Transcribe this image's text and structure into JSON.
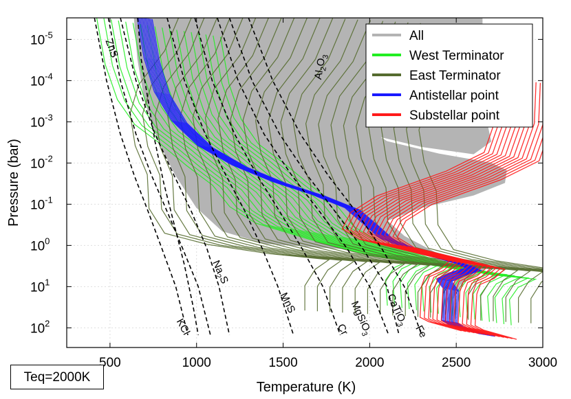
{
  "chart_data": {
    "type": "line",
    "title": "",
    "xlabel": "Temperature (K)",
    "ylabel": "Pressure (bar)",
    "xlim": [
      250,
      3000
    ],
    "ylim_bar": [
      300,
      3e-06
    ],
    "y_scale": "log",
    "y_inverted": true,
    "grid": true,
    "legend_position": "top-right",
    "x_ticks": [
      500,
      1000,
      1500,
      2000,
      2500,
      3000
    ],
    "y_ticks": [
      {
        "value": 1e-05,
        "mantissa": "10",
        "exp": "-5"
      },
      {
        "value": 0.0001,
        "mantissa": "10",
        "exp": "-4"
      },
      {
        "value": 0.001,
        "mantissa": "10",
        "exp": "-3"
      },
      {
        "value": 0.01,
        "mantissa": "10",
        "exp": "-2"
      },
      {
        "value": 0.1,
        "mantissa": "10",
        "exp": "-1"
      },
      {
        "value": 1,
        "mantissa": "10",
        "exp": "0"
      },
      {
        "value": 10,
        "mantissa": "10",
        "exp": "1"
      },
      {
        "value": 100,
        "mantissa": "10",
        "exp": "2"
      }
    ],
    "series": [
      {
        "name": "All",
        "color": "#b4b4b4"
      },
      {
        "name": "West Terminator",
        "color": "#22ee22"
      },
      {
        "name": "East Terminator",
        "color": "#556b2f"
      },
      {
        "name": "Antistellar point",
        "color": "#1a1aff"
      },
      {
        "name": "Substellar point",
        "color": "#ff1a1a"
      }
    ],
    "profiles": {
      "antistellar": [
        [
          700,
          3e-06
        ],
        [
          740,
          3e-05
        ],
        [
          800,
          0.0002
        ],
        [
          900,
          0.001
        ],
        [
          1050,
          0.004
        ],
        [
          1250,
          0.012
        ],
        [
          1480,
          0.03
        ],
        [
          1700,
          0.06
        ],
        [
          1900,
          0.13
        ],
        [
          2000,
          0.3
        ],
        [
          2100,
          0.7
        ],
        [
          2300,
          1.5
        ],
        [
          2550,
          3
        ],
        [
          2600,
          3.8
        ],
        [
          2500,
          5
        ],
        [
          2430,
          7
        ],
        [
          2470,
          12
        ],
        [
          2460,
          70
        ],
        [
          2500,
          90
        ],
        [
          2680,
          150
        ]
      ],
      "substellar": [
        [
          2900,
          0.0001
        ],
        [
          2890,
          0.001
        ],
        [
          2820,
          0.007
        ],
        [
          2600,
          0.02
        ],
        [
          2400,
          0.04
        ],
        [
          2200,
          0.08
        ],
        [
          2050,
          0.2
        ],
        [
          2000,
          0.5
        ],
        [
          2100,
          0.9
        ],
        [
          2400,
          1.8
        ],
        [
          2620,
          3
        ],
        [
          2560,
          5
        ],
        [
          2480,
          7
        ],
        [
          2460,
          12
        ],
        [
          2450,
          70
        ],
        [
          2500,
          90
        ],
        [
          2690,
          150
        ]
      ],
      "west": [
        [
          780,
          5e-06
        ],
        [
          830,
          7e-05
        ],
        [
          900,
          0.0005
        ],
        [
          1000,
          0.002
        ],
        [
          1150,
          0.006
        ],
        [
          1300,
          0.02
        ],
        [
          1450,
          0.06
        ],
        [
          1550,
          0.2
        ],
        [
          1700,
          0.5
        ],
        [
          2000,
          1.2
        ],
        [
          2350,
          3
        ],
        [
          2600,
          3.8
        ],
        [
          2500,
          6
        ],
        [
          2450,
          12
        ],
        [
          2460,
          50
        ]
      ],
      "east": [
        [
          1750,
          3e-06
        ],
        [
          1650,
          3e-05
        ],
        [
          1500,
          0.0002
        ],
        [
          1450,
          0.001
        ],
        [
          1480,
          0.006
        ],
        [
          1550,
          0.03
        ],
        [
          1560,
          0.2
        ],
        [
          1650,
          0.8
        ],
        [
          1900,
          1.5
        ],
        [
          2250,
          2.5
        ],
        [
          2600,
          3.5
        ],
        [
          2520,
          6
        ],
        [
          2460,
          15
        ],
        [
          2460,
          60
        ]
      ]
    },
    "condensation_curves": [
      {
        "label": "ZnS",
        "sub": "",
        "pts": [
          [
            660,
            3e-06
          ],
          [
            680,
            3e-05
          ],
          [
            720,
            0.0003
          ],
          [
            760,
            0.003
          ],
          [
            810,
            0.03
          ],
          [
            870,
            0.3
          ],
          [
            930,
            3
          ],
          [
            980,
            30
          ],
          [
            1010,
            150
          ]
        ]
      },
      {
        "label": "KCl",
        "sub": "",
        "pts": [
          [
            410,
            3e-06
          ],
          [
            480,
            0.0001
          ],
          [
            560,
            0.002
          ],
          [
            640,
            0.02
          ],
          [
            720,
            0.15
          ],
          [
            800,
            1.2
          ],
          [
            880,
            10
          ],
          [
            950,
            150
          ]
        ]
      },
      {
        "label": "Na",
        "sub": "2",
        "post": "S",
        "pts": [
          [
            490,
            3e-06
          ],
          [
            560,
            0.0001
          ],
          [
            650,
            0.002
          ],
          [
            740,
            0.02
          ],
          [
            830,
            0.15
          ],
          [
            920,
            1.2
          ],
          [
            1010,
            10
          ],
          [
            1080,
            150
          ]
        ]
      },
      {
        "label": "MnS",
        "sub": "",
        "pts": [
          [
            560,
            3e-06
          ],
          [
            650,
            0.0001
          ],
          [
            760,
            0.002
          ],
          [
            870,
            0.02
          ],
          [
            970,
            0.15
          ],
          [
            1060,
            1.2
          ],
          [
            1130,
            10
          ],
          [
            1190,
            150
          ]
        ]
      },
      {
        "label": "Cr",
        "sub": "",
        "pts": [
          [
            830,
            3e-06
          ],
          [
            930,
            0.0001
          ],
          [
            1050,
            0.002
          ],
          [
            1170,
            0.02
          ],
          [
            1280,
            0.15
          ],
          [
            1380,
            1.2
          ],
          [
            1470,
            10
          ],
          [
            1560,
            150
          ]
        ]
      },
      {
        "label": "MgSiO",
        "sub": "3",
        "pts": [
          [
            990,
            3e-06
          ],
          [
            1090,
            0.0001
          ],
          [
            1220,
            0.002
          ],
          [
            1350,
            0.02
          ],
          [
            1480,
            0.15
          ],
          [
            1610,
            1.2
          ],
          [
            1730,
            10
          ],
          [
            1830,
            150
          ]
        ]
      },
      {
        "label": "CaTiO",
        "sub": "3",
        "pts": [
          [
            1120,
            3e-06
          ],
          [
            1240,
            0.0001
          ],
          [
            1390,
            0.002
          ],
          [
            1550,
            0.02
          ],
          [
            1710,
            0.15
          ],
          [
            1870,
            1.2
          ],
          [
            2000,
            10
          ],
          [
            2110,
            150
          ]
        ]
      },
      {
        "label": "Fe",
        "sub": "",
        "pts": [
          [
            1190,
            3e-06
          ],
          [
            1320,
            0.0001
          ],
          [
            1480,
            0.002
          ],
          [
            1640,
            0.02
          ],
          [
            1800,
            0.15
          ],
          [
            1960,
            1.2
          ],
          [
            2100,
            10
          ],
          [
            2170,
            150
          ]
        ]
      },
      {
        "label": "Al",
        "sub": "2",
        "post": "O",
        "sub2": "3",
        "pts": [
          [
            1300,
            3e-06
          ],
          [
            1440,
            0.0001
          ],
          [
            1600,
            0.002
          ],
          [
            1760,
            0.02
          ],
          [
            1920,
            0.15
          ],
          [
            2070,
            1.2
          ],
          [
            2200,
            10
          ],
          [
            2300,
            150
          ]
        ]
      }
    ]
  },
  "teq_label": "Teq=2000K"
}
